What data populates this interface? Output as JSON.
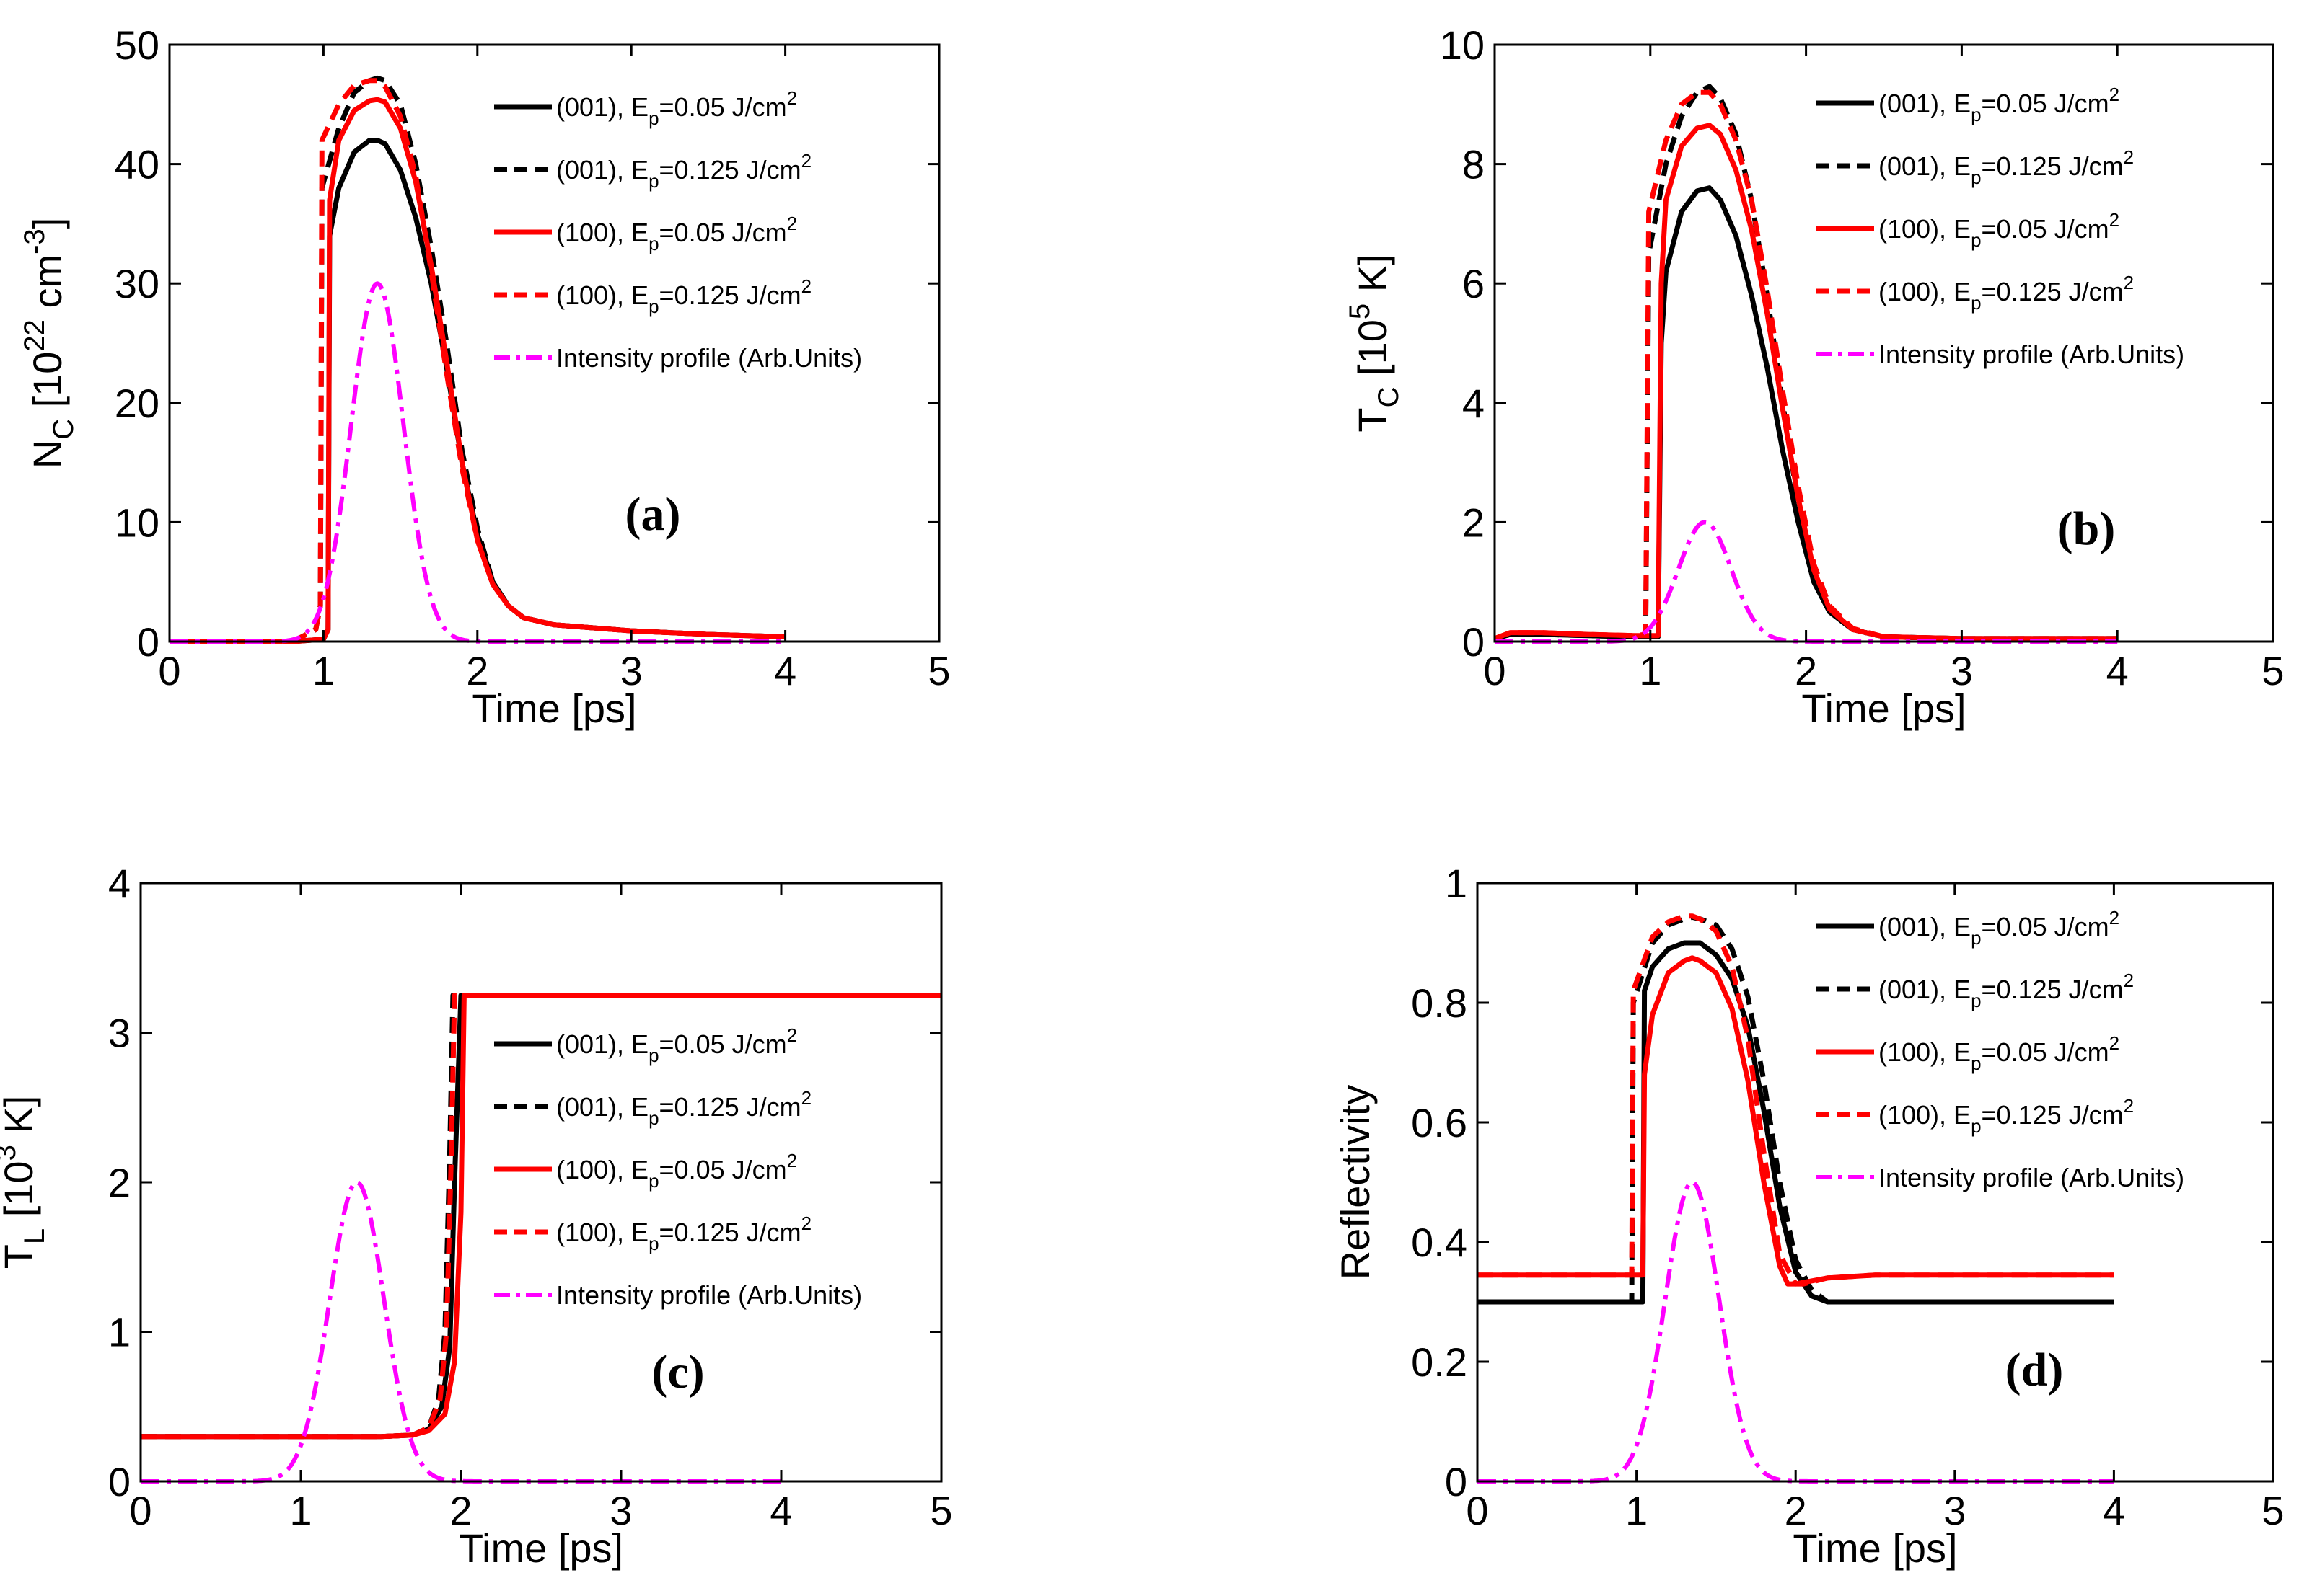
{
  "styles": {
    "black": "#000000",
    "red": "#ff0000",
    "magenta": "#ff00ff"
  },
  "legend": [
    {
      "pre": "(001),  E",
      "sub": "p",
      "mid": "=0.05 J/cm",
      "sup": "2",
      "color": "#000000",
      "dash": "solid"
    },
    {
      "pre": "(001),  E",
      "sub": "p",
      "mid": "=0.125 J/cm",
      "sup": "2",
      "color": "#000000",
      "dash": "dashed"
    },
    {
      "pre": "(100),  E",
      "sub": "p",
      "mid": "=0.05 J/cm",
      "sup": "2",
      "color": "#ff0000",
      "dash": "solid"
    },
    {
      "pre": "(100),  E",
      "sub": "p",
      "mid": "=0.125 J/cm",
      "sup": "2",
      "color": "#ff0000",
      "dash": "dashed"
    },
    {
      "pre": "Intensity profile (Arb.Units)",
      "sub": "",
      "mid": "",
      "sup": "",
      "color": "#ff00ff",
      "dash": "dashdot"
    }
  ],
  "chart_data": [
    {
      "type": "line",
      "panel": "(a)",
      "xlabel": "Time  [ps]",
      "ylabel": {
        "main": "N",
        "sub": "C",
        "rest": " [10",
        "sup": "22",
        "rest2": " cm",
        "sup2": "-3",
        "end": "]"
      },
      "xlim": [
        0,
        5
      ],
      "ylim": [
        0,
        50
      ],
      "xticks": [
        0,
        1,
        2,
        3,
        4,
        5
      ],
      "yticks": [
        0,
        10,
        20,
        30,
        40,
        50
      ],
      "legend_position": "top-right",
      "series": [
        {
          "x": [
            0,
            0.5,
            0.8,
            1.0,
            1.03,
            1.04,
            1.1,
            1.2,
            1.3,
            1.35,
            1.4,
            1.5,
            1.6,
            1.7,
            1.8,
            1.9,
            2.0,
            2.1,
            2.2,
            2.3,
            2.5,
            3.0,
            3.5,
            4.0
          ],
          "y": [
            0,
            0,
            0,
            0.2,
            1.0,
            34.0,
            38.0,
            41.0,
            42.0,
            42.0,
            41.7,
            39.5,
            35.5,
            30.0,
            23.0,
            15.0,
            9.0,
            5.0,
            3.0,
            2.0,
            1.4,
            0.9,
            0.6,
            0.4
          ]
        },
        {
          "x": [
            0,
            0.5,
            0.8,
            0.95,
            0.98,
            0.99,
            1.1,
            1.2,
            1.3,
            1.35,
            1.4,
            1.5,
            1.6,
            1.7,
            1.8,
            1.9,
            2.0,
            2.1,
            2.2,
            2.3,
            2.5,
            3.0,
            3.5,
            4.0
          ],
          "y": [
            0,
            0,
            0,
            1.0,
            3.0,
            38.0,
            43.0,
            46.0,
            47.0,
            47.2,
            47.0,
            45.0,
            40.0,
            33.0,
            25.0,
            16.0,
            9.5,
            5.0,
            3.0,
            2.0,
            1.4,
            0.9,
            0.6,
            0.4
          ]
        },
        {
          "x": [
            0,
            0.5,
            0.8,
            1.0,
            1.03,
            1.04,
            1.1,
            1.2,
            1.3,
            1.35,
            1.4,
            1.5,
            1.6,
            1.7,
            1.8,
            1.9,
            2.0,
            2.1,
            2.2,
            2.3,
            2.5,
            3.0,
            3.5,
            4.0
          ],
          "y": [
            0,
            0,
            0,
            0.2,
            1.0,
            37.0,
            42.0,
            44.5,
            45.3,
            45.4,
            45.2,
            43.0,
            38.5,
            31.5,
            23.5,
            15.0,
            8.5,
            4.8,
            3.0,
            2.0,
            1.4,
            0.9,
            0.6,
            0.4
          ]
        },
        {
          "x": [
            0,
            0.5,
            0.8,
            0.95,
            0.98,
            0.99,
            1.1,
            1.2,
            1.3,
            1.35,
            1.4,
            1.5,
            1.6,
            1.7,
            1.8,
            1.9,
            2.0,
            2.1,
            2.2,
            2.3,
            2.5,
            3.0,
            3.5,
            4.0
          ],
          "y": [
            0,
            0,
            0,
            1.0,
            3.0,
            42.0,
            45.0,
            46.6,
            47.0,
            47.0,
            46.5,
            44.0,
            39.0,
            31.0,
            22.5,
            14.5,
            8.5,
            4.8,
            3.0,
            2.0,
            1.4,
            0.9,
            0.6,
            0.4
          ]
        },
        {
          "gaussian": {
            "amp": 30,
            "center": 1.35,
            "sigma": 0.17,
            "xmax": 4.0
          }
        }
      ]
    },
    {
      "type": "line",
      "panel": "(b)",
      "xlabel": "Time  [ps]",
      "ylabel": {
        "main": "T",
        "sub": "C",
        "rest": " [10",
        "sup": "5",
        "rest2": " K]",
        "sup2": "",
        "end": ""
      },
      "xlim": [
        0,
        5
      ],
      "ylim": [
        0,
        10
      ],
      "xticks": [
        0,
        1,
        2,
        3,
        4,
        5
      ],
      "yticks": [
        0,
        2,
        4,
        6,
        8,
        10
      ],
      "legend_position": "top-right",
      "series": [
        {
          "x": [
            0,
            0.1,
            0.3,
            0.6,
            0.9,
            1.05,
            1.07,
            1.1,
            1.2,
            1.3,
            1.38,
            1.45,
            1.55,
            1.65,
            1.75,
            1.85,
            1.95,
            2.05,
            2.15,
            2.3,
            2.5,
            3.0,
            4.0
          ],
          "y": [
            0.05,
            0.12,
            0.12,
            0.1,
            0.08,
            0.08,
            5.0,
            6.2,
            7.2,
            7.55,
            7.6,
            7.4,
            6.8,
            5.8,
            4.6,
            3.2,
            2.0,
            1.0,
            0.5,
            0.2,
            0.08,
            0.05,
            0.05
          ]
        },
        {
          "x": [
            0,
            0.1,
            0.3,
            0.6,
            0.9,
            0.97,
            0.99,
            1.1,
            1.2,
            1.3,
            1.38,
            1.45,
            1.55,
            1.65,
            1.75,
            1.85,
            1.95,
            2.05,
            2.15,
            2.3,
            2.5,
            3.0,
            4.0
          ],
          "y": [
            0.05,
            0.12,
            0.12,
            0.1,
            0.08,
            0.1,
            6.5,
            8.0,
            8.8,
            9.2,
            9.3,
            9.1,
            8.5,
            7.4,
            5.8,
            4.0,
            2.3,
            1.1,
            0.5,
            0.2,
            0.08,
            0.05,
            0.05
          ]
        },
        {
          "x": [
            0,
            0.1,
            0.3,
            0.6,
            0.9,
            1.05,
            1.07,
            1.1,
            1.2,
            1.3,
            1.38,
            1.45,
            1.55,
            1.65,
            1.75,
            1.85,
            1.95,
            2.05,
            2.15,
            2.3,
            2.5,
            3.0,
            4.0
          ],
          "y": [
            0.05,
            0.15,
            0.15,
            0.12,
            0.1,
            0.1,
            6.0,
            7.4,
            8.3,
            8.6,
            8.65,
            8.5,
            7.9,
            6.9,
            5.5,
            3.9,
            2.4,
            1.2,
            0.55,
            0.2,
            0.08,
            0.05,
            0.05
          ]
        },
        {
          "x": [
            0,
            0.1,
            0.3,
            0.6,
            0.9,
            0.97,
            0.99,
            1.1,
            1.2,
            1.3,
            1.38,
            1.45,
            1.55,
            1.65,
            1.75,
            1.85,
            1.95,
            2.05,
            2.15,
            2.3,
            2.5,
            3.0,
            4.0
          ],
          "y": [
            0.05,
            0.15,
            0.15,
            0.12,
            0.1,
            0.12,
            7.2,
            8.4,
            9.0,
            9.2,
            9.2,
            9.0,
            8.4,
            7.4,
            5.9,
            4.2,
            2.6,
            1.3,
            0.6,
            0.22,
            0.08,
            0.05,
            0.05
          ]
        },
        {
          "gaussian": {
            "amp": 2,
            "center": 1.35,
            "sigma": 0.17,
            "xmax": 4.0
          }
        }
      ]
    },
    {
      "type": "line",
      "panel": "(c)",
      "xlabel": "Time  [ps]",
      "ylabel": {
        "main": "T",
        "sub": "L",
        "rest": " [10",
        "sup": "3",
        "rest2": " K]",
        "sup2": "",
        "end": ""
      },
      "xlim": [
        0,
        5
      ],
      "ylim": [
        0,
        4
      ],
      "xticks": [
        0,
        1,
        2,
        3,
        4,
        5
      ],
      "yticks": [
        0,
        1,
        2,
        3,
        4
      ],
      "legend_position": "right",
      "series": [
        {
          "x": [
            0,
            1.5,
            1.7,
            1.8,
            1.88,
            1.93,
            1.96,
            2.0,
            2.03,
            3.0,
            5.0
          ],
          "y": [
            0.3,
            0.3,
            0.31,
            0.35,
            0.5,
            0.9,
            2.0,
            3.25,
            3.25,
            3.25,
            3.25
          ]
        },
        {
          "x": [
            0,
            1.5,
            1.7,
            1.8,
            1.86,
            1.9,
            1.93,
            1.95,
            1.97,
            3.0,
            5.0
          ],
          "y": [
            0.3,
            0.3,
            0.31,
            0.36,
            0.55,
            1.0,
            2.2,
            3.25,
            3.25,
            3.25,
            3.25
          ]
        },
        {
          "x": [
            0,
            1.5,
            1.7,
            1.8,
            1.9,
            1.96,
            2.0,
            2.02,
            2.05,
            3.0,
            5.0
          ],
          "y": [
            0.3,
            0.3,
            0.31,
            0.34,
            0.45,
            0.8,
            1.8,
            3.25,
            3.25,
            3.25,
            3.25
          ]
        },
        {
          "x": [
            0,
            1.5,
            1.7,
            1.8,
            1.87,
            1.91,
            1.94,
            1.96,
            1.98,
            3.0,
            5.0
          ],
          "y": [
            0.3,
            0.3,
            0.31,
            0.36,
            0.55,
            1.0,
            2.2,
            3.25,
            3.25,
            3.25,
            3.25
          ]
        },
        {
          "gaussian": {
            "amp": 2,
            "center": 1.35,
            "sigma": 0.17,
            "xmax": 4.0
          }
        }
      ]
    },
    {
      "type": "line",
      "panel": "(d)",
      "xlabel": "Time  [ps]",
      "ylabel": {
        "main": "Reflectivity",
        "sub": "",
        "rest": "",
        "sup": "",
        "rest2": "",
        "sup2": "",
        "end": ""
      },
      "xlim": [
        0,
        5
      ],
      "ylim": [
        0,
        1
      ],
      "xticks": [
        0,
        1,
        2,
        3,
        4,
        5
      ],
      "yticks": [
        0,
        0.2,
        0.4,
        0.6,
        0.8,
        1
      ],
      "legend_position": "top-right",
      "series": [
        {
          "x": [
            0,
            0.5,
            1.04,
            1.05,
            1.1,
            1.2,
            1.3,
            1.35,
            1.4,
            1.5,
            1.6,
            1.7,
            1.8,
            1.9,
            2.0,
            2.1,
            2.2,
            2.5,
            3.0,
            4.0
          ],
          "y": [
            0.3,
            0.3,
            0.3,
            0.82,
            0.86,
            0.89,
            0.9,
            0.9,
            0.9,
            0.88,
            0.84,
            0.76,
            0.62,
            0.46,
            0.35,
            0.31,
            0.3,
            0.3,
            0.3,
            0.3
          ]
        },
        {
          "x": [
            0,
            0.5,
            0.97,
            0.98,
            1.1,
            1.2,
            1.3,
            1.35,
            1.4,
            1.5,
            1.6,
            1.7,
            1.8,
            1.9,
            2.0,
            2.1,
            2.2,
            2.5,
            3.0,
            4.0
          ],
          "y": [
            0.3,
            0.3,
            0.3,
            0.8,
            0.9,
            0.93,
            0.94,
            0.943,
            0.94,
            0.93,
            0.89,
            0.81,
            0.67,
            0.5,
            0.37,
            0.32,
            0.3,
            0.3,
            0.3,
            0.3
          ]
        },
        {
          "x": [
            0,
            0.5,
            1.04,
            1.05,
            1.1,
            1.2,
            1.3,
            1.35,
            1.4,
            1.5,
            1.6,
            1.7,
            1.8,
            1.9,
            1.95,
            2.0,
            2.2,
            2.5,
            3.0,
            4.0
          ],
          "y": [
            0.345,
            0.345,
            0.345,
            0.68,
            0.78,
            0.85,
            0.87,
            0.875,
            0.87,
            0.85,
            0.79,
            0.67,
            0.5,
            0.36,
            0.33,
            0.33,
            0.34,
            0.345,
            0.345,
            0.345
          ]
        },
        {
          "x": [
            0,
            0.5,
            0.97,
            0.98,
            1.1,
            1.2,
            1.3,
            1.35,
            1.4,
            1.5,
            1.6,
            1.7,
            1.8,
            1.9,
            2.0,
            2.05,
            2.2,
            2.5,
            3.0,
            4.0
          ],
          "y": [
            0.345,
            0.345,
            0.345,
            0.82,
            0.91,
            0.935,
            0.945,
            0.945,
            0.94,
            0.92,
            0.86,
            0.74,
            0.55,
            0.38,
            0.33,
            0.33,
            0.34,
            0.345,
            0.345,
            0.345
          ]
        },
        {
          "gaussian": {
            "amp": 0.5,
            "center": 1.35,
            "sigma": 0.17,
            "xmax": 4.0
          }
        }
      ]
    }
  ]
}
